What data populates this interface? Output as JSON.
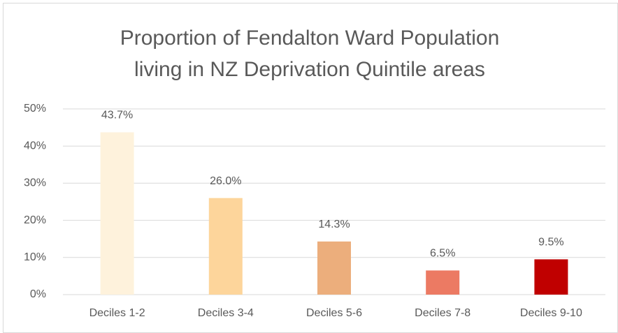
{
  "chart_data": {
    "type": "bar",
    "title": [
      "Proportion of Fendalton Ward Population",
      "living in NZ Deprivation Quintile areas"
    ],
    "categories": [
      "Deciles 1-2",
      "Deciles 3-4",
      "Deciles 5-6",
      "Deciles 7-8",
      "Deciles 9-10"
    ],
    "values": [
      43.7,
      26.0,
      14.3,
      6.5,
      9.5
    ],
    "value_labels": [
      "43.7%",
      "26.0%",
      "14.3%",
      "6.5%",
      "9.5%"
    ],
    "colors": [
      "#fef2dc",
      "#fdd59b",
      "#ecae7c",
      "#ec7a63",
      "#c00000"
    ],
    "ylim": [
      0,
      50
    ],
    "yticks": [
      {
        "value": 0,
        "label": "0%"
      },
      {
        "value": 10,
        "label": "10%"
      },
      {
        "value": 20,
        "label": "20%"
      },
      {
        "value": 30,
        "label": "30%"
      },
      {
        "value": 40,
        "label": "40%"
      },
      {
        "value": 50,
        "label": "50%"
      }
    ],
    "grid": true
  }
}
